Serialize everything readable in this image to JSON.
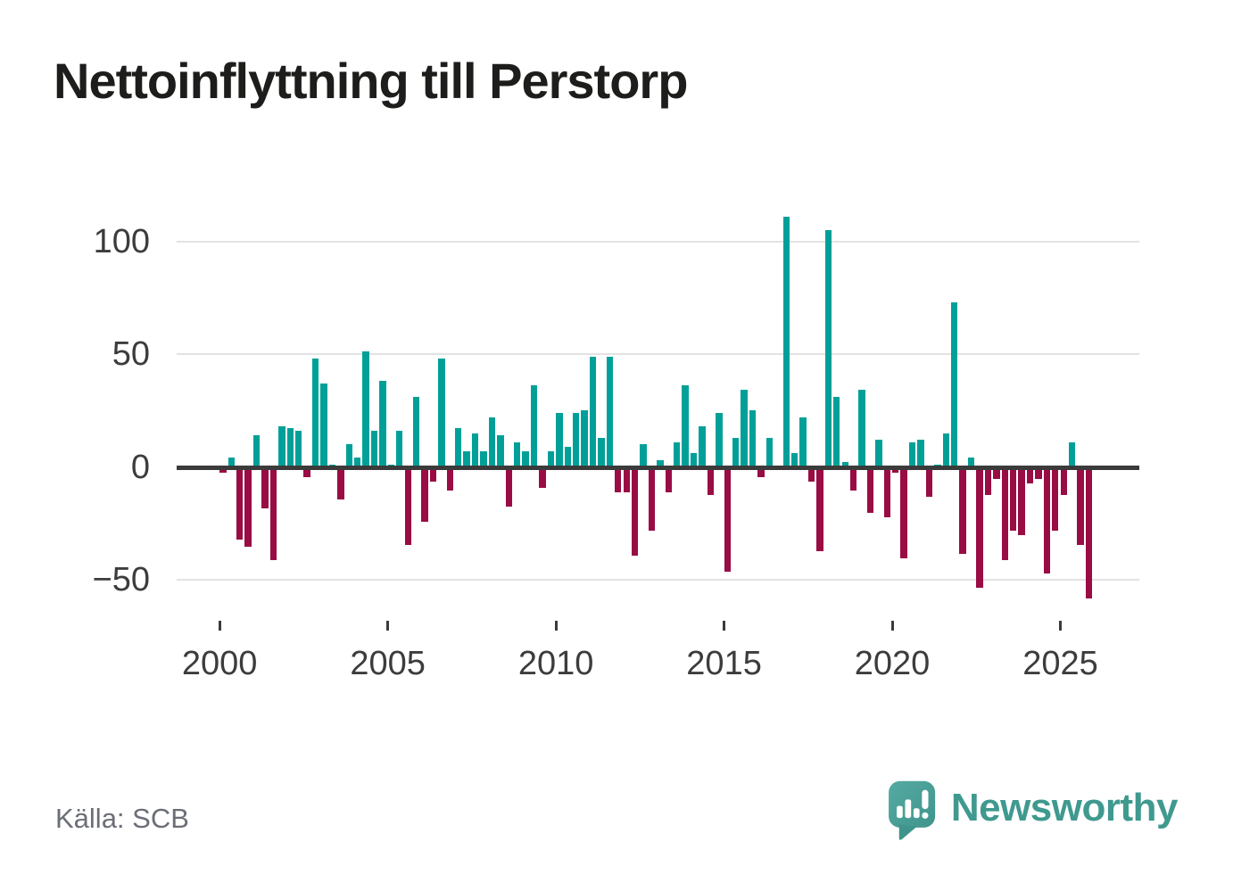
{
  "header": {
    "title": "Nettoinflyttning till Perstorp"
  },
  "footer": {
    "source": "Källa: SCB",
    "brand": "Newsworthy"
  },
  "colors": {
    "positive": "#00a099",
    "negative": "#990c44",
    "axis": "#3b3b3b",
    "grid": "#e3e3e3",
    "title_text": "#1d1d1b",
    "axis_text": "#3c3c3c",
    "muted_text": "#6b6e76",
    "brand_teal": "#3f998f",
    "logo_teal": "#4aa29b"
  },
  "icons": {
    "logo": "speech-bubble-bar-chart-icon"
  },
  "axes": {
    "y_ticks": [
      "100",
      "50",
      "0",
      "−50"
    ],
    "y_tick_values": [
      100,
      50,
      0,
      -50
    ],
    "x_ticks": [
      "2000",
      "2005",
      "2010",
      "2015",
      "2020",
      "2025"
    ]
  },
  "chart_data": {
    "type": "bar",
    "title": "Nettoinflyttning till Perstorp",
    "source": "Källa: SCB",
    "x_type": "time-quarterly",
    "xlabel": "",
    "ylabel": "",
    "ylim": [
      -70,
      116
    ],
    "grid": "horizontal",
    "legend": "none",
    "positive_color": "#00a099",
    "negative_color": "#990c44",
    "categories": [
      "2000Q1",
      "2000Q2",
      "2000Q3",
      "2000Q4",
      "2001Q1",
      "2001Q2",
      "2001Q3",
      "2001Q4",
      "2002Q1",
      "2002Q2",
      "2002Q3",
      "2002Q4",
      "2003Q1",
      "2003Q2",
      "2003Q3",
      "2003Q4",
      "2004Q1",
      "2004Q2",
      "2004Q3",
      "2004Q4",
      "2005Q1",
      "2005Q2",
      "2005Q3",
      "2005Q4",
      "2006Q1",
      "2006Q2",
      "2006Q3",
      "2006Q4",
      "2007Q1",
      "2007Q2",
      "2007Q3",
      "2007Q4",
      "2008Q1",
      "2008Q2",
      "2008Q3",
      "2008Q4",
      "2009Q1",
      "2009Q2",
      "2009Q3",
      "2009Q4",
      "2010Q1",
      "2010Q2",
      "2010Q3",
      "2010Q4",
      "2011Q1",
      "2011Q2",
      "2011Q3",
      "2011Q4",
      "2012Q1",
      "2012Q2",
      "2012Q3",
      "2012Q4",
      "2013Q1",
      "2013Q2",
      "2013Q3",
      "2013Q4",
      "2014Q1",
      "2014Q2",
      "2014Q3",
      "2014Q4",
      "2015Q1",
      "2015Q2",
      "2015Q3",
      "2015Q4",
      "2016Q1",
      "2016Q2",
      "2016Q3",
      "2016Q4",
      "2017Q1",
      "2017Q2",
      "2017Q3",
      "2017Q4",
      "2018Q1",
      "2018Q2",
      "2018Q3",
      "2018Q4",
      "2019Q1",
      "2019Q2",
      "2019Q3",
      "2019Q4",
      "2020Q1",
      "2020Q2",
      "2020Q3",
      "2020Q4",
      "2021Q1",
      "2021Q2",
      "2021Q3",
      "2021Q4",
      "2022Q1",
      "2022Q2",
      "2022Q3",
      "2022Q4",
      "2023Q1",
      "2023Q2",
      "2023Q3",
      "2023Q4",
      "2024Q1",
      "2024Q2",
      "2024Q3",
      "2024Q4",
      "2025Q1",
      "2025Q2",
      "2025Q3",
      "2025Q4"
    ],
    "values": [
      -2,
      4,
      -32,
      -35,
      14,
      -18,
      -41,
      18,
      17,
      16,
      -4,
      48,
      37,
      1,
      -14,
      10,
      4,
      51,
      16,
      38,
      1,
      16,
      -34,
      31,
      -24,
      -6,
      48,
      -10,
      17,
      7,
      15,
      7,
      22,
      14,
      -17,
      11,
      7,
      36,
      -9,
      7,
      24,
      9,
      24,
      25,
      49,
      13,
      49,
      -11,
      -11,
      -39,
      10,
      -28,
      3,
      -11,
      11,
      36,
      6,
      18,
      -12,
      24,
      -46,
      13,
      34,
      25,
      -4,
      13,
      0,
      111,
      6,
      22,
      -6,
      -37,
      105,
      31,
      2,
      -10,
      34,
      -20,
      12,
      -22,
      -2,
      -40,
      11,
      12,
      -13,
      1,
      15,
      73,
      -38,
      4,
      -53,
      -12,
      -5,
      -41,
      -28,
      -30,
      -7,
      -5,
      -47,
      -28,
      -12,
      11,
      -34,
      -58
    ]
  }
}
